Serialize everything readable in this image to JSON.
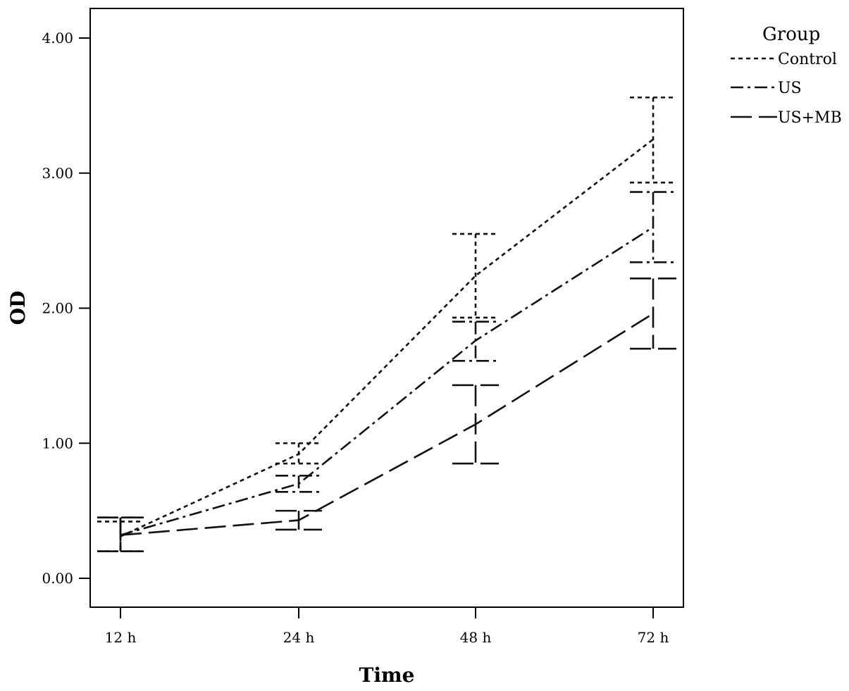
{
  "chart_data": {
    "type": "line",
    "xlabel": "Time",
    "ylabel": "OD",
    "categories": [
      "12 h",
      "24 h",
      "48 h",
      "72 h"
    ],
    "ylim": [
      -0.2,
      4.2
    ],
    "yticks": [
      "0.00",
      "1.00",
      "2.00",
      "3.00",
      "4.00"
    ],
    "grid": false,
    "legend": {
      "title": "Group",
      "placement": "right"
    },
    "series": [
      {
        "name": "Control",
        "style": "dotted",
        "values": [
          0.31,
          0.92,
          2.24,
          3.25
        ],
        "error_low": [
          0.2,
          0.85,
          1.93,
          2.93
        ],
        "error_high": [
          0.42,
          1.0,
          2.55,
          3.56
        ]
      },
      {
        "name": "US",
        "style": "dash-dot",
        "values": [
          0.32,
          0.7,
          1.76,
          2.6
        ],
        "error_low": [
          0.2,
          0.64,
          1.61,
          2.34
        ],
        "error_high": [
          0.45,
          0.76,
          1.9,
          2.86
        ]
      },
      {
        "name": "US+MB",
        "style": "long-dash",
        "values": [
          0.32,
          0.43,
          1.14,
          1.96
        ],
        "error_low": [
          0.2,
          0.36,
          0.85,
          1.7
        ],
        "error_high": [
          0.45,
          0.5,
          1.43,
          2.22
        ]
      }
    ]
  }
}
